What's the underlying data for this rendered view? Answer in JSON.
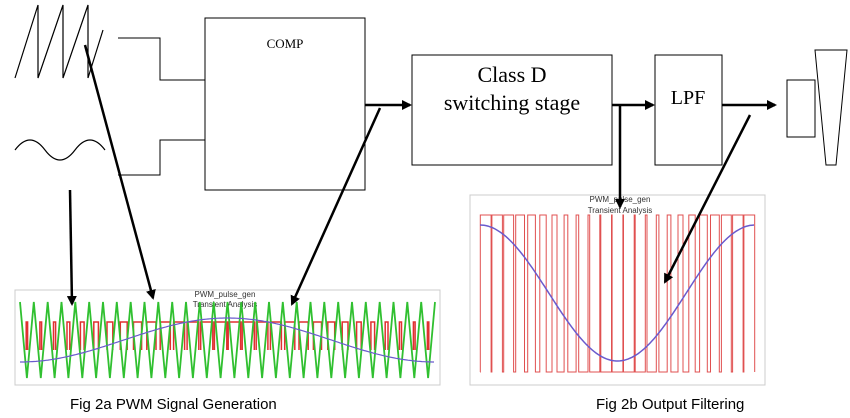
{
  "blocks": {
    "comparator": "COMP",
    "switching": [
      "Class D",
      "switching stage"
    ],
    "filter": "LPF"
  },
  "figures": [
    {
      "title": "PWM_pulse_gen",
      "subtitle": "Transient Analysis",
      "caption": "Fig 2a PWM Signal Generation"
    },
    {
      "title": "PWM_pulse_gen",
      "subtitle": "Transient Analysis",
      "caption": "Fig 2b Output Filtering"
    }
  ]
}
